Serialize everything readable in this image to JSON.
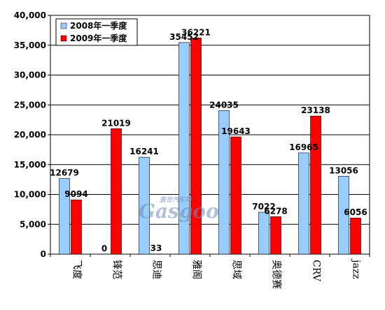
{
  "colors": {
    "series_2008": "#99ccff",
    "series_2009": "#ff0000",
    "grid": "#000000",
    "watermark": "#6e8fb5"
  },
  "watermark": {
    "brand": "Gasgoo",
    "cn": "盖世汽车网"
  },
  "chart_data": {
    "type": "bar",
    "title": "",
    "xlabel": "",
    "ylabel": "",
    "ylim": [
      0,
      40000
    ],
    "yticks": [
      "0",
      "5,000",
      "10,000",
      "15,000",
      "20,000",
      "25,000",
      "30,000",
      "35,000",
      "40,000"
    ],
    "ytick_values": [
      0,
      5000,
      10000,
      15000,
      20000,
      25000,
      30000,
      35000,
      40000
    ],
    "grid": true,
    "legend_position": "top-left",
    "categories": [
      "飞度",
      "锋范",
      "思迪",
      "雅阁",
      "思域",
      "奥德赛",
      "CRV",
      "jazz"
    ],
    "series": [
      {
        "name": "2008年一季度",
        "values": [
          12679,
          0,
          16241,
          35452,
          24035,
          7022,
          16965,
          13056
        ]
      },
      {
        "name": "2009年一季度",
        "values": [
          9094,
          21019,
          33,
          36221,
          19643,
          6278,
          23138,
          6056
        ]
      }
    ]
  }
}
